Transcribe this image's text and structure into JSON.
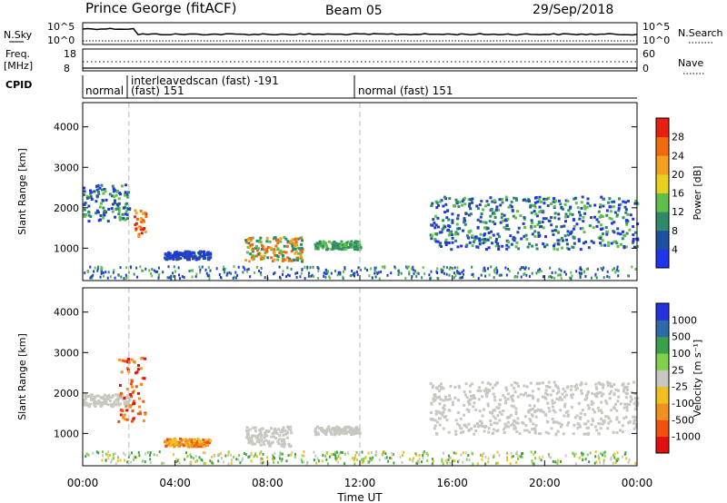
{
  "header": {
    "station": "Prince George (fitACF)",
    "beam": "Beam 05",
    "date": "29/Sep/2018"
  },
  "status_panels": {
    "nsky_label": "N.Sky",
    "nsky_ticks": [
      "10^5",
      "10^0"
    ],
    "nsearch_label": "N.Search",
    "nsearch_ticks": [
      "10^5",
      "10^0"
    ],
    "freq_label_1": "Freq.",
    "freq_label_2": "[MHz]",
    "freq_ticks": [
      "18",
      "8"
    ],
    "nave_label": "Nave",
    "nave_ticks": [
      "60",
      "0"
    ],
    "cpid_label": "CPID",
    "cpid_segments": [
      {
        "line1": "normal",
        "line2": ""
      },
      {
        "line1": "interleavedscan (fast) -191",
        "line2": "(fast) 151"
      },
      {
        "line1": "normal (fast) 151",
        "line2": ""
      }
    ]
  },
  "chart_data": [
    {
      "type": "heatmap",
      "panel": "power",
      "ylabel": "Slant Range [km]",
      "ytick_labels": [
        "1000",
        "2000",
        "3000",
        "4000"
      ],
      "ylim": [
        200,
        4600
      ],
      "xlim": [
        0,
        24
      ],
      "colorbar": {
        "label": "Power [dB]",
        "tick_labels": [
          "4",
          "8",
          "12",
          "16",
          "20",
          "24",
          "28"
        ],
        "colors": [
          "#2233ee",
          "#1f4fa0",
          "#2f8a6a",
          "#5fbf4a",
          "#e8d020",
          "#f5a020",
          "#f06a10",
          "#e52010"
        ]
      },
      "features": [
        {
          "t0": 0.0,
          "t1": 2.0,
          "r0": 1700,
          "r1": 2600,
          "level": "green-blue"
        },
        {
          "t0": 2.2,
          "t1": 2.7,
          "r0": 1300,
          "r1": 2000,
          "level": "orange"
        },
        {
          "t0": 3.5,
          "t1": 5.5,
          "r0": 750,
          "r1": 950,
          "level": "blue"
        },
        {
          "t0": 7.0,
          "t1": 9.5,
          "r0": 700,
          "r1": 1300,
          "level": "green-orange"
        },
        {
          "t0": 10.0,
          "t1": 12.0,
          "r0": 1000,
          "r1": 1200,
          "level": "green"
        },
        {
          "t0": 15.0,
          "t1": 24.0,
          "r0": 1000,
          "r1": 2300,
          "level": "blue-green"
        }
      ]
    },
    {
      "type": "heatmap",
      "panel": "velocity",
      "ylabel": "Slant Range [km]",
      "ytick_labels": [
        "1000",
        "2000",
        "3000",
        "4000"
      ],
      "ylim": [
        200,
        4600
      ],
      "xlim": [
        0,
        24
      ],
      "colorbar": {
        "label": "Velocity [m s⁻¹]",
        "tick_labels": [
          "1000",
          "500",
          "100",
          "25",
          "-25",
          "-100",
          "-500",
          "-1000"
        ],
        "colors": [
          "#2233dd",
          "#2f6aa8",
          "#3aa04a",
          "#7fd04a",
          "#c8c8c0",
          "#f0c020",
          "#f09020",
          "#f05010",
          "#e01010"
        ]
      },
      "features": [
        {
          "t0": 0.0,
          "t1": 2.0,
          "r0": 1700,
          "r1": 2000,
          "level": "gray"
        },
        {
          "t0": 1.5,
          "t1": 2.7,
          "r0": 1300,
          "r1": 2900,
          "level": "red-orange"
        },
        {
          "t0": 3.5,
          "t1": 5.5,
          "r0": 700,
          "r1": 900,
          "level": "orange"
        },
        {
          "t0": 7.0,
          "t1": 9.0,
          "r0": 700,
          "r1": 1200,
          "level": "gray"
        },
        {
          "t0": 10.0,
          "t1": 12.0,
          "r0": 1000,
          "r1": 1200,
          "level": "gray"
        },
        {
          "t0": 15.0,
          "t1": 24.0,
          "r0": 1000,
          "r1": 2300,
          "level": "gray"
        }
      ]
    }
  ],
  "xaxis": {
    "tick_labels": [
      "00:00",
      "04:00",
      "08:00",
      "12:00",
      "16:00",
      "20:00",
      "00:00"
    ],
    "label": "Time UT"
  }
}
